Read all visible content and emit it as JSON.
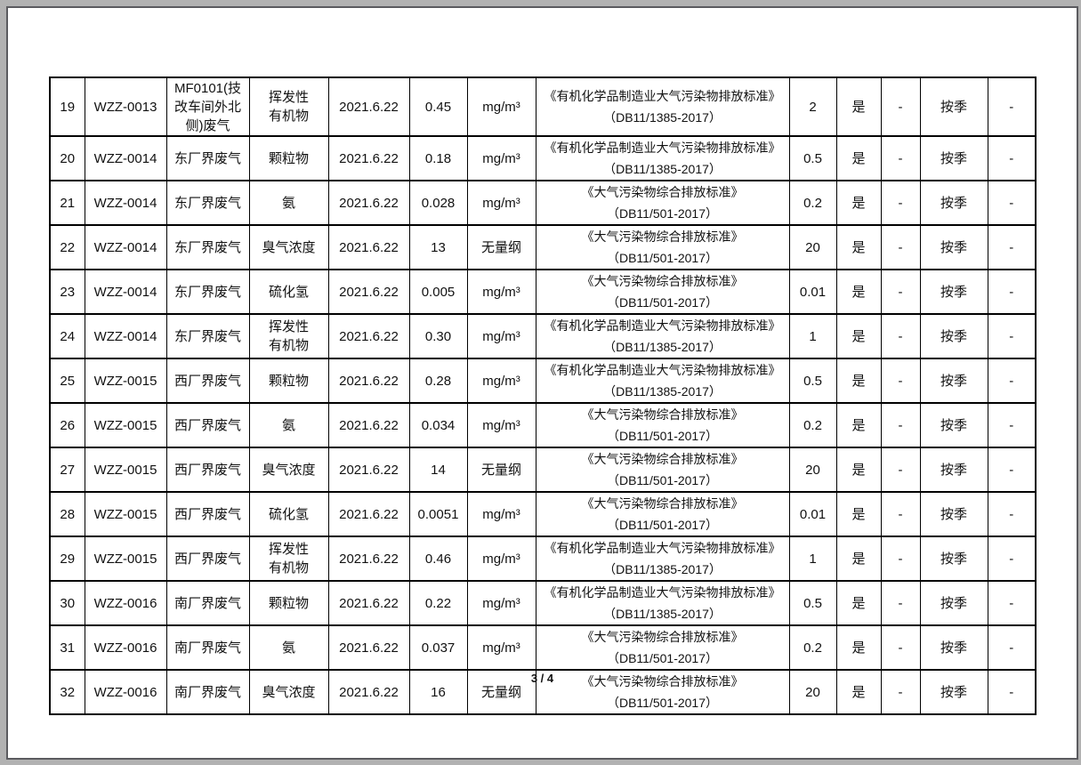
{
  "page": {
    "footer_page_indicator": "3 / 4"
  },
  "colors": {
    "outer_background": "#b2b2b2",
    "page_background": "#ffffff",
    "page_frame_border": "#5b5b5f",
    "table_grid": "#000000",
    "text": "#111111"
  },
  "table": {
    "rows": [
      {
        "no": "19",
        "code": "WZZ-0013",
        "location": "MF0101(技\n改车间外北\n侧)废气",
        "pollutant": "挥发性\n有机物",
        "date": "2021.6.22",
        "value": "0.45",
        "unit": "mg/m³",
        "standard_name": "《有机化学品制造业大气污染物排放标准》",
        "standard_code": "（DB11/1385-2017）",
        "limit": "2",
        "compliant": "是",
        "dash1": "-",
        "frequency": "按季",
        "dash2": "-"
      },
      {
        "no": "20",
        "code": "WZZ-0014",
        "location": "东厂界废气",
        "pollutant": "颗粒物",
        "date": "2021.6.22",
        "value": "0.18",
        "unit": "mg/m³",
        "standard_name": "《有机化学品制造业大气污染物排放标准》",
        "standard_code": "（DB11/1385-2017）",
        "limit": "0.5",
        "compliant": "是",
        "dash1": "-",
        "frequency": "按季",
        "dash2": "-"
      },
      {
        "no": "21",
        "code": "WZZ-0014",
        "location": "东厂界废气",
        "pollutant": "氨",
        "date": "2021.6.22",
        "value": "0.028",
        "unit": "mg/m³",
        "standard_name": "《大气污染物综合排放标准》",
        "standard_code": "（DB11/501-2017）",
        "limit": "0.2",
        "compliant": "是",
        "dash1": "-",
        "frequency": "按季",
        "dash2": "-"
      },
      {
        "no": "22",
        "code": "WZZ-0014",
        "location": "东厂界废气",
        "pollutant": "臭气浓度",
        "date": "2021.6.22",
        "value": "13",
        "unit": "无量纲",
        "standard_name": "《大气污染物综合排放标准》",
        "standard_code": "（DB11/501-2017）",
        "limit": "20",
        "compliant": "是",
        "dash1": "-",
        "frequency": "按季",
        "dash2": "-"
      },
      {
        "no": "23",
        "code": "WZZ-0014",
        "location": "东厂界废气",
        "pollutant": "硫化氢",
        "date": "2021.6.22",
        "value": "0.005",
        "unit": "mg/m³",
        "standard_name": "《大气污染物综合排放标准》",
        "standard_code": "（DB11/501-2017）",
        "limit": "0.01",
        "compliant": "是",
        "dash1": "-",
        "frequency": "按季",
        "dash2": "-"
      },
      {
        "no": "24",
        "code": "WZZ-0014",
        "location": "东厂界废气",
        "pollutant": "挥发性\n有机物",
        "date": "2021.6.22",
        "value": "0.30",
        "unit": "mg/m³",
        "standard_name": "《有机化学品制造业大气污染物排放标准》",
        "standard_code": "（DB11/1385-2017）",
        "limit": "1",
        "compliant": "是",
        "dash1": "-",
        "frequency": "按季",
        "dash2": "-"
      },
      {
        "no": "25",
        "code": "WZZ-0015",
        "location": "西厂界废气",
        "pollutant": "颗粒物",
        "date": "2021.6.22",
        "value": "0.28",
        "unit": "mg/m³",
        "standard_name": "《有机化学品制造业大气污染物排放标准》",
        "standard_code": "（DB11/1385-2017）",
        "limit": "0.5",
        "compliant": "是",
        "dash1": "-",
        "frequency": "按季",
        "dash2": "-"
      },
      {
        "no": "26",
        "code": "WZZ-0015",
        "location": "西厂界废气",
        "pollutant": "氨",
        "date": "2021.6.22",
        "value": "0.034",
        "unit": "mg/m³",
        "standard_name": "《大气污染物综合排放标准》",
        "standard_code": "（DB11/501-2017）",
        "limit": "0.2",
        "compliant": "是",
        "dash1": "-",
        "frequency": "按季",
        "dash2": "-"
      },
      {
        "no": "27",
        "code": "WZZ-0015",
        "location": "西厂界废气",
        "pollutant": "臭气浓度",
        "date": "2021.6.22",
        "value": "14",
        "unit": "无量纲",
        "standard_name": "《大气污染物综合排放标准》",
        "standard_code": "（DB11/501-2017）",
        "limit": "20",
        "compliant": "是",
        "dash1": "-",
        "frequency": "按季",
        "dash2": "-"
      },
      {
        "no": "28",
        "code": "WZZ-0015",
        "location": "西厂界废气",
        "pollutant": "硫化氢",
        "date": "2021.6.22",
        "value": "0.0051",
        "unit": "mg/m³",
        "standard_name": "《大气污染物综合排放标准》",
        "standard_code": "（DB11/501-2017）",
        "limit": "0.01",
        "compliant": "是",
        "dash1": "-",
        "frequency": "按季",
        "dash2": "-"
      },
      {
        "no": "29",
        "code": "WZZ-0015",
        "location": "西厂界废气",
        "pollutant": "挥发性\n有机物",
        "date": "2021.6.22",
        "value": "0.46",
        "unit": "mg/m³",
        "standard_name": "《有机化学品制造业大气污染物排放标准》",
        "standard_code": "（DB11/1385-2017）",
        "limit": "1",
        "compliant": "是",
        "dash1": "-",
        "frequency": "按季",
        "dash2": "-"
      },
      {
        "no": "30",
        "code": "WZZ-0016",
        "location": "南厂界废气",
        "pollutant": "颗粒物",
        "date": "2021.6.22",
        "value": "0.22",
        "unit": "mg/m³",
        "standard_name": "《有机化学品制造业大气污染物排放标准》",
        "standard_code": "（DB11/1385-2017）",
        "limit": "0.5",
        "compliant": "是",
        "dash1": "-",
        "frequency": "按季",
        "dash2": "-"
      },
      {
        "no": "31",
        "code": "WZZ-0016",
        "location": "南厂界废气",
        "pollutant": "氨",
        "date": "2021.6.22",
        "value": "0.037",
        "unit": "mg/m³",
        "standard_name": "《大气污染物综合排放标准》",
        "standard_code": "（DB11/501-2017）",
        "limit": "0.2",
        "compliant": "是",
        "dash1": "-",
        "frequency": "按季",
        "dash2": "-"
      },
      {
        "no": "32",
        "code": "WZZ-0016",
        "location": "南厂界废气",
        "pollutant": "臭气浓度",
        "date": "2021.6.22",
        "value": "16",
        "unit": "无量纲",
        "standard_name": "《大气污染物综合排放标准》",
        "standard_code": "（DB11/501-2017）",
        "limit": "20",
        "compliant": "是",
        "dash1": "-",
        "frequency": "按季",
        "dash2": "-"
      }
    ]
  }
}
